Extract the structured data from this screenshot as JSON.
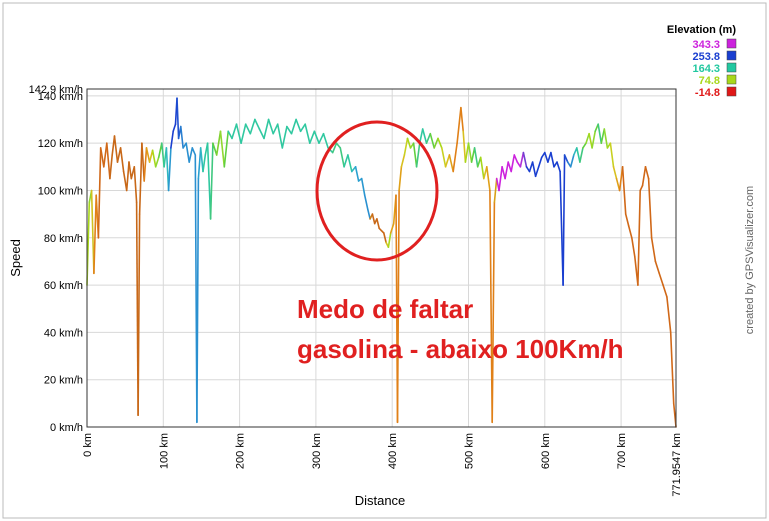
{
  "chart_data": {
    "type": "line",
    "xlabel": "Distance",
    "ylabel": "Speed",
    "xlim": [
      0,
      771.9547
    ],
    "ylim": [
      0,
      142.9
    ],
    "x_ticks": [
      "0 km",
      "100 km",
      "200 km",
      "300 km",
      "400 km",
      "500 km",
      "600 km",
      "700 km",
      "771.9547 km"
    ],
    "x_tick_values": [
      0,
      100,
      200,
      300,
      400,
      500,
      600,
      700,
      771.9547
    ],
    "y_ticks": [
      "0 km/h",
      "20 km/h",
      "40 km/h",
      "60 km/h",
      "80 km/h",
      "100 km/h",
      "120 km/h",
      "140 km/h",
      "142.9 km/h"
    ],
    "y_tick_values": [
      0,
      20,
      40,
      60,
      80,
      100,
      120,
      140,
      142.9
    ],
    "grid": true,
    "legend": {
      "title": "Elevation (m)",
      "placement": "top-right",
      "entries": [
        {
          "label": "343.3",
          "color": "#cc22dd"
        },
        {
          "label": "253.8",
          "color": "#1a3fd0"
        },
        {
          "label": "164.3",
          "color": "#22c8a0"
        },
        {
          "label": "74.8",
          "color": "#a8d81a"
        },
        {
          "label": "-14.8",
          "color": "#e01818"
        }
      ]
    },
    "series": [
      {
        "points": [
          [
            0,
            60,
            "#c8d020"
          ],
          [
            3,
            95,
            "#a8d81a"
          ],
          [
            6,
            100,
            "#90d830"
          ],
          [
            9,
            65,
            "#d0c020"
          ],
          [
            12,
            98,
            "#e08018"
          ],
          [
            15,
            80,
            "#e08018"
          ],
          [
            18,
            118,
            "#d06818"
          ],
          [
            22,
            110,
            "#d06818"
          ],
          [
            26,
            120,
            "#d06818"
          ],
          [
            30,
            105,
            "#d06818"
          ],
          [
            33,
            115,
            "#c86818"
          ],
          [
            36,
            123,
            "#c86818"
          ],
          [
            40,
            112,
            "#c86818"
          ],
          [
            44,
            118,
            "#c86818"
          ],
          [
            48,
            108,
            "#c86818"
          ],
          [
            52,
            100,
            "#c86818"
          ],
          [
            55,
            112,
            "#c86818"
          ],
          [
            58,
            105,
            "#c86818"
          ],
          [
            62,
            110,
            "#c86818"
          ],
          [
            65,
            95,
            "#c86818"
          ],
          [
            67,
            5,
            "#c86818"
          ],
          [
            69,
            90,
            "#c86818"
          ],
          [
            72,
            120,
            "#c86818"
          ],
          [
            75,
            104,
            "#c86818"
          ],
          [
            78,
            118,
            "#e08018"
          ],
          [
            82,
            112,
            "#e0a018"
          ],
          [
            86,
            117,
            "#d8c020"
          ],
          [
            90,
            110,
            "#a8d81a"
          ],
          [
            94,
            114,
            "#90d830"
          ],
          [
            98,
            120,
            "#60d040"
          ],
          [
            101,
            110,
            "#40c880"
          ],
          [
            104,
            118,
            "#30c8a0"
          ],
          [
            107,
            100,
            "#30b8c0"
          ],
          [
            110,
            118,
            "#2a98d0"
          ],
          [
            113,
            125,
            "#1a3fd0"
          ],
          [
            116,
            128,
            "#1a3fd0"
          ],
          [
            118,
            139,
            "#1a3fd0"
          ],
          [
            120,
            122,
            "#2050d0"
          ],
          [
            123,
            127,
            "#2060d0"
          ],
          [
            126,
            118,
            "#2a80d0"
          ],
          [
            130,
            120,
            "#2a90d0"
          ],
          [
            134,
            112,
            "#2a90d0"
          ],
          [
            138,
            118,
            "#2a90d0"
          ],
          [
            142,
            115,
            "#2a90d0"
          ],
          [
            144,
            2,
            "#2a90d0"
          ],
          [
            146,
            105,
            "#2a90d0"
          ],
          [
            149,
            118,
            "#2aa0d0"
          ],
          [
            152,
            108,
            "#30b8c0"
          ],
          [
            155,
            115,
            "#30c8a0"
          ],
          [
            158,
            120,
            "#30c8a0"
          ],
          [
            162,
            88,
            "#30c8a0"
          ],
          [
            165,
            120,
            "#40c880"
          ],
          [
            170,
            115,
            "#60d040"
          ],
          [
            175,
            125,
            "#80d030"
          ],
          [
            180,
            110,
            "#90d830"
          ],
          [
            185,
            125,
            "#60d040"
          ],
          [
            190,
            122,
            "#30c8a0"
          ],
          [
            196,
            128,
            "#30c8a0"
          ],
          [
            202,
            120,
            "#30c8a0"
          ],
          [
            208,
            128,
            "#30c8a0"
          ],
          [
            214,
            124,
            "#30c8a0"
          ],
          [
            220,
            130,
            "#30c8a0"
          ],
          [
            226,
            126,
            "#30c8a0"
          ],
          [
            232,
            122,
            "#30c8a0"
          ],
          [
            238,
            130,
            "#30c8a0"
          ],
          [
            244,
            124,
            "#30c8a0"
          ],
          [
            250,
            128,
            "#30c8a0"
          ],
          [
            256,
            118,
            "#30c8a0"
          ],
          [
            262,
            127,
            "#30c8a0"
          ],
          [
            268,
            124,
            "#30c8a0"
          ],
          [
            274,
            130,
            "#30c8a0"
          ],
          [
            280,
            125,
            "#30c8a0"
          ],
          [
            286,
            128,
            "#30c8a0"
          ],
          [
            292,
            120,
            "#30c8a0"
          ],
          [
            298,
            125,
            "#30c8a0"
          ],
          [
            304,
            120,
            "#30c8a0"
          ],
          [
            310,
            124,
            "#30c8a0"
          ],
          [
            316,
            118,
            "#30c8a0"
          ],
          [
            322,
            116,
            "#30c8a0"
          ],
          [
            327,
            120,
            "#40c880"
          ],
          [
            332,
            118,
            "#40c880"
          ],
          [
            337,
            110,
            "#40c880"
          ],
          [
            342,
            115,
            "#30c8a0"
          ],
          [
            347,
            108,
            "#30c8a0"
          ],
          [
            352,
            110,
            "#30b8c0"
          ],
          [
            356,
            104,
            "#2aa0d0"
          ],
          [
            360,
            105,
            "#2aa0d0"
          ],
          [
            364,
            98,
            "#2a98d0"
          ],
          [
            368,
            92,
            "#2a90d0"
          ],
          [
            371,
            88,
            "#2a90d0"
          ],
          [
            374,
            90,
            "#d08018"
          ],
          [
            377,
            86,
            "#c86818"
          ],
          [
            380,
            88,
            "#c86818"
          ],
          [
            383,
            84,
            "#c86818"
          ],
          [
            386,
            83,
            "#c86818"
          ],
          [
            389,
            82,
            "#c86818"
          ],
          [
            392,
            78,
            "#c86818"
          ],
          [
            395,
            76,
            "#d8c020"
          ],
          [
            398,
            82,
            "#a8d81a"
          ],
          [
            402,
            86,
            "#e0a018"
          ],
          [
            405,
            98,
            "#e0a018"
          ],
          [
            407,
            2,
            "#e08018"
          ],
          [
            409,
            100,
            "#e08018"
          ],
          [
            412,
            110,
            "#e0a018"
          ],
          [
            416,
            115,
            "#d8c020"
          ],
          [
            420,
            122,
            "#c8d020"
          ],
          [
            424,
            118,
            "#a8d81a"
          ],
          [
            428,
            120,
            "#90d830"
          ],
          [
            432,
            110,
            "#60d040"
          ],
          [
            436,
            120,
            "#40c880"
          ],
          [
            440,
            126,
            "#30c8a0"
          ],
          [
            445,
            120,
            "#30c8a0"
          ],
          [
            450,
            124,
            "#40c880"
          ],
          [
            455,
            118,
            "#60d040"
          ],
          [
            460,
            122,
            "#80d030"
          ],
          [
            465,
            118,
            "#a8d81a"
          ],
          [
            470,
            110,
            "#c8d020"
          ],
          [
            475,
            115,
            "#d8c020"
          ],
          [
            480,
            108,
            "#e0a018"
          ],
          [
            485,
            120,
            "#e08018"
          ],
          [
            490,
            135,
            "#e08018"
          ],
          [
            493,
            125,
            "#e08018"
          ],
          [
            496,
            112,
            "#d8c020"
          ],
          [
            500,
            120,
            "#a8d81a"
          ],
          [
            504,
            112,
            "#90d830"
          ],
          [
            508,
            118,
            "#60d040"
          ],
          [
            512,
            110,
            "#40c880"
          ],
          [
            516,
            114,
            "#60d040"
          ],
          [
            520,
            105,
            "#a8d81a"
          ],
          [
            524,
            110,
            "#d8c020"
          ],
          [
            528,
            100,
            "#e0a018"
          ],
          [
            531,
            2,
            "#e08018"
          ],
          [
            534,
            95,
            "#e08018"
          ],
          [
            537,
            105,
            "#d8a018"
          ],
          [
            540,
            100,
            "#cc22dd"
          ],
          [
            544,
            110,
            "#cc22dd"
          ],
          [
            548,
            105,
            "#cc22dd"
          ],
          [
            552,
            112,
            "#cc22dd"
          ],
          [
            556,
            108,
            "#cc22dd"
          ],
          [
            560,
            115,
            "#cc22dd"
          ],
          [
            564,
            112,
            "#cc22dd"
          ],
          [
            568,
            110,
            "#cc22dd"
          ],
          [
            572,
            116,
            "#b030d8"
          ],
          [
            576,
            110,
            "#7040d0"
          ],
          [
            580,
            108,
            "#1a3fd0"
          ],
          [
            584,
            112,
            "#1a3fd0"
          ],
          [
            588,
            106,
            "#1a3fd0"
          ],
          [
            592,
            110,
            "#1a3fd0"
          ],
          [
            596,
            114,
            "#1a3fd0"
          ],
          [
            600,
            116,
            "#1a3fd0"
          ],
          [
            604,
            112,
            "#1a3fd0"
          ],
          [
            608,
            116,
            "#1a3fd0"
          ],
          [
            612,
            110,
            "#1a3fd0"
          ],
          [
            616,
            112,
            "#1a3fd0"
          ],
          [
            620,
            108,
            "#1a3fd0"
          ],
          [
            624,
            60,
            "#1a3fd0"
          ],
          [
            626,
            115,
            "#1a3fd0"
          ],
          [
            630,
            112,
            "#2050d0"
          ],
          [
            634,
            110,
            "#2a80d0"
          ],
          [
            638,
            115,
            "#2a90d0"
          ],
          [
            642,
            118,
            "#30b8c0"
          ],
          [
            646,
            112,
            "#30c8a0"
          ],
          [
            650,
            118,
            "#40c880"
          ],
          [
            654,
            120,
            "#60d040"
          ],
          [
            658,
            124,
            "#90d830"
          ],
          [
            662,
            118,
            "#a8d81a"
          ],
          [
            666,
            125,
            "#90d830"
          ],
          [
            670,
            128,
            "#60d040"
          ],
          [
            674,
            120,
            "#40c880"
          ],
          [
            678,
            126,
            "#60d040"
          ],
          [
            682,
            118,
            "#90d830"
          ],
          [
            686,
            120,
            "#a8d81a"
          ],
          [
            690,
            110,
            "#c8d020"
          ],
          [
            694,
            105,
            "#d8c020"
          ],
          [
            698,
            100,
            "#e0a018"
          ],
          [
            702,
            110,
            "#e08018"
          ],
          [
            706,
            90,
            "#d06818"
          ],
          [
            710,
            85,
            "#d06818"
          ],
          [
            714,
            80,
            "#d06818"
          ],
          [
            718,
            72,
            "#d06818"
          ],
          [
            722,
            60,
            "#d06818"
          ],
          [
            725,
            100,
            "#d06818"
          ],
          [
            728,
            102,
            "#d06818"
          ],
          [
            732,
            110,
            "#d06818"
          ],
          [
            736,
            105,
            "#d06818"
          ],
          [
            740,
            80,
            "#d06818"
          ],
          [
            745,
            70,
            "#d06818"
          ],
          [
            750,
            65,
            "#d06818"
          ],
          [
            755,
            60,
            "#d06818"
          ],
          [
            760,
            55,
            "#d06818"
          ],
          [
            765,
            40,
            "#d06818"
          ],
          [
            769,
            10,
            "#d06818"
          ],
          [
            771.9547,
            0,
            "#d06818"
          ]
        ]
      }
    ]
  },
  "annotation": {
    "line1": "Medo de faltar",
    "line2": "gasolina - abaixo 100Km/h"
  },
  "credit": "created by GPSVisualizer.com"
}
